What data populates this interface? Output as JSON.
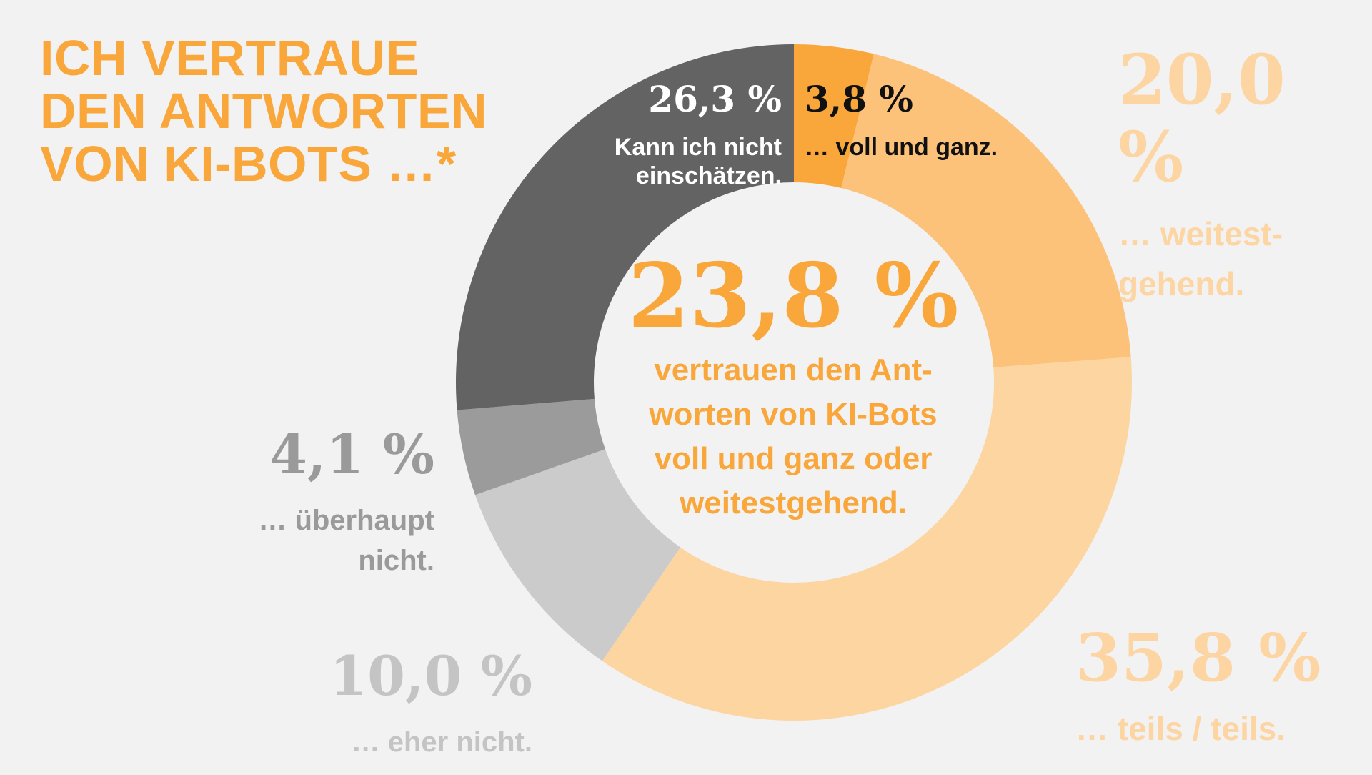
{
  "title": "ICH VERTRAUE\nDEN ANTWORTEN\nVON KI-BOTS …*",
  "center": {
    "value": "23,8 %",
    "text": "vertrauen den Ant-\nworten von KI-Bots\nvoll und ganz oder\nweitestgehend."
  },
  "chart_data": {
    "type": "pie",
    "donut": true,
    "title": "ICH VERTRAUE DEN ANTWORTEN VON KI-BOTS …*",
    "slices": [
      {
        "key": "voll",
        "value": 3.8,
        "label_value": "3,8 %",
        "label": "… voll und ganz.",
        "color": "#f9a63a"
      },
      {
        "key": "weit",
        "value": 20.0,
        "label_value": "20,0 %",
        "label": "… weitest-\ngehend.",
        "color": "#fdc27a"
      },
      {
        "key": "teils",
        "value": 35.8,
        "label_value": "35,8 %",
        "label": "… teils / teils.",
        "color": "#fdd5a1"
      },
      {
        "key": "eher",
        "value": 10.0,
        "label_value": "10,0 %",
        "label": "… eher nicht.",
        "color": "#cbcbcb"
      },
      {
        "key": "ueber",
        "value": 4.1,
        "label_value": "4,1 %",
        "label": "… überhaupt\nnicht.",
        "color": "#9b9b9b"
      },
      {
        "key": "dunno",
        "value": 26.3,
        "label_value": "26,3 %",
        "label": "Kann ich nicht\neinschätzen.",
        "color": "#636363"
      }
    ]
  }
}
